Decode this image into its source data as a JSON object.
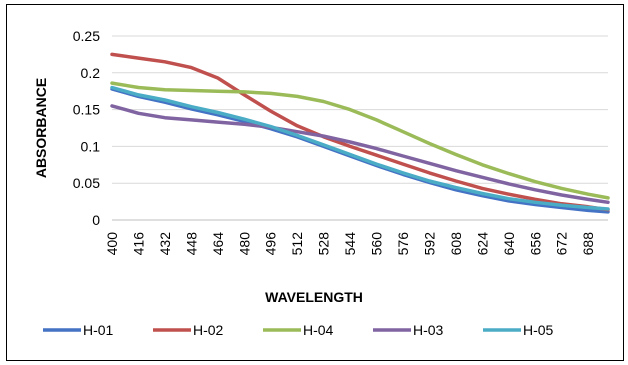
{
  "chart_data": {
    "type": "line",
    "title": "",
    "xlabel": "WAVELENGTH",
    "ylabel": "ABSORBANCE",
    "ylim": [
      0,
      0.25
    ],
    "xlim": [
      400,
      700
    ],
    "yticks": [
      "0",
      "0.05",
      "0.1",
      "0.15",
      "0.2",
      "0.25"
    ],
    "xticks": [
      "400",
      "416",
      "432",
      "448",
      "464",
      "480",
      "496",
      "512",
      "528",
      "544",
      "560",
      "576",
      "592",
      "608",
      "624",
      "640",
      "656",
      "672",
      "688"
    ],
    "grid": "horizontal",
    "legend_position": "bottom",
    "series": [
      {
        "name": "H-01",
        "color": "#4472C4",
        "x": [
          400,
          416,
          432,
          448,
          464,
          480,
          496,
          512,
          528,
          544,
          560,
          576,
          592,
          608,
          624,
          640,
          656,
          672,
          688,
          700
        ],
        "y": [
          0.178,
          0.168,
          0.16,
          0.151,
          0.143,
          0.134,
          0.124,
          0.113,
          0.1,
          0.087,
          0.074,
          0.062,
          0.051,
          0.041,
          0.033,
          0.026,
          0.021,
          0.017,
          0.013,
          0.011
        ]
      },
      {
        "name": "H-02",
        "color": "#C0504D",
        "x": [
          400,
          416,
          432,
          448,
          464,
          480,
          496,
          512,
          528,
          544,
          560,
          576,
          592,
          608,
          624,
          640,
          656,
          672,
          688,
          700
        ],
        "y": [
          0.225,
          0.22,
          0.215,
          0.207,
          0.193,
          0.17,
          0.148,
          0.128,
          0.113,
          0.1,
          0.088,
          0.076,
          0.064,
          0.053,
          0.043,
          0.035,
          0.028,
          0.022,
          0.018,
          0.014
        ]
      },
      {
        "name": "H-04",
        "color": "#9BBB59",
        "x": [
          400,
          416,
          432,
          448,
          464,
          480,
          496,
          512,
          528,
          544,
          560,
          576,
          592,
          608,
          624,
          640,
          656,
          672,
          688,
          700
        ],
        "y": [
          0.186,
          0.18,
          0.177,
          0.176,
          0.175,
          0.174,
          0.172,
          0.168,
          0.161,
          0.15,
          0.136,
          0.12,
          0.104,
          0.089,
          0.075,
          0.063,
          0.052,
          0.043,
          0.035,
          0.03
        ]
      },
      {
        "name": "H-03",
        "color": "#8064A2",
        "x": [
          400,
          416,
          432,
          448,
          464,
          480,
          496,
          512,
          528,
          544,
          560,
          576,
          592,
          608,
          624,
          640,
          656,
          672,
          688,
          700
        ],
        "y": [
          0.155,
          0.145,
          0.139,
          0.136,
          0.133,
          0.13,
          0.126,
          0.12,
          0.114,
          0.106,
          0.097,
          0.087,
          0.077,
          0.067,
          0.058,
          0.049,
          0.041,
          0.034,
          0.028,
          0.024
        ]
      },
      {
        "name": "H-05",
        "color": "#4BACC6",
        "x": [
          400,
          416,
          432,
          448,
          464,
          480,
          496,
          512,
          528,
          544,
          560,
          576,
          592,
          608,
          624,
          640,
          656,
          672,
          688,
          700
        ],
        "y": [
          0.18,
          0.17,
          0.163,
          0.154,
          0.146,
          0.137,
          0.127,
          0.115,
          0.102,
          0.089,
          0.076,
          0.064,
          0.053,
          0.044,
          0.036,
          0.029,
          0.024,
          0.02,
          0.017,
          0.015
        ]
      }
    ]
  }
}
